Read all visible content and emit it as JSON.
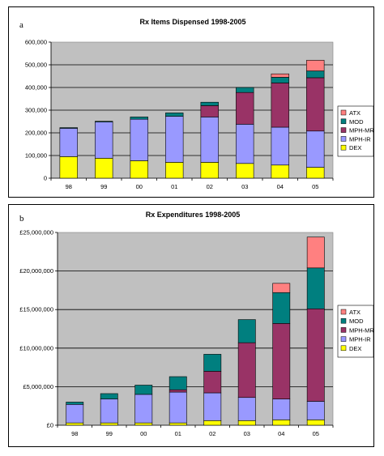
{
  "figure": {
    "panels": [
      {
        "letter": "a"
      },
      {
        "letter": "b"
      }
    ]
  },
  "chart_data": [
    {
      "type": "bar",
      "stacked": true,
      "title": "Rx Items Dispensed 1998-2005",
      "xlabel": "",
      "ylabel": "",
      "categories": [
        "98",
        "99",
        "00",
        "01",
        "02",
        "03",
        "04",
        "05"
      ],
      "ylim": [
        0,
        600000
      ],
      "yticks": [
        0,
        100000,
        200000,
        300000,
        400000,
        500000,
        600000
      ],
      "ytick_labels": [
        "0",
        "100,000",
        "200,000",
        "300,000",
        "400,000",
        "500,000",
        "600,000"
      ],
      "gridlines": [
        100000,
        200000,
        300000,
        400000,
        500000
      ],
      "grid": true,
      "legend_position": "right",
      "plot_background": "#c0c0c0",
      "series": [
        {
          "name": "DEX",
          "color": "#ffff00",
          "values": [
            95000,
            88000,
            77000,
            70000,
            70000,
            65000,
            58000,
            48000
          ]
        },
        {
          "name": "MPH-IR",
          "color": "#9999ff",
          "values": [
            125000,
            160000,
            183000,
            203000,
            200000,
            173000,
            167000,
            160000
          ]
        },
        {
          "name": "MPH-MR",
          "color": "#993366",
          "values": [
            0,
            0,
            0,
            0,
            50000,
            140000,
            195000,
            235000
          ]
        },
        {
          "name": "MOD",
          "color": "#007f7f",
          "values": [
            3000,
            3000,
            10000,
            15000,
            15000,
            22000,
            25000,
            30000
          ]
        },
        {
          "name": "ATX",
          "color": "#ff8080",
          "values": [
            0,
            0,
            0,
            0,
            0,
            0,
            15000,
            47000
          ]
        }
      ]
    },
    {
      "type": "bar",
      "stacked": true,
      "title": "Rx Expenditures 1998-2005",
      "xlabel": "",
      "ylabel": "",
      "categories": [
        "98",
        "99",
        "00",
        "01",
        "02",
        "03",
        "04",
        "05"
      ],
      "ylim": [
        0,
        25000000
      ],
      "yticks": [
        0,
        5000000,
        10000000,
        15000000,
        20000000,
        25000000
      ],
      "ytick_labels": [
        "£0",
        "£5,000,000",
        "£10,000,000",
        "£15,000,000",
        "£20,000,000",
        "£25,000,000"
      ],
      "gridlines": [
        5000000,
        10000000,
        15000000,
        20000000
      ],
      "grid": true,
      "legend_position": "right",
      "plot_background": "#c0c0c0",
      "series": [
        {
          "name": "DEX",
          "color": "#ffff00",
          "values": [
            300000,
            300000,
            300000,
            300000,
            600000,
            600000,
            700000,
            700000
          ]
        },
        {
          "name": "MPH-IR",
          "color": "#9999ff",
          "values": [
            2400000,
            3100000,
            3700000,
            4000000,
            3600000,
            3000000,
            2700000,
            2400000
          ]
        },
        {
          "name": "MPH-MR",
          "color": "#993366",
          "values": [
            0,
            0,
            0,
            300000,
            2800000,
            7100000,
            9800000,
            12000000
          ]
        },
        {
          "name": "MOD",
          "color": "#007f7f",
          "values": [
            300000,
            700000,
            1200000,
            1700000,
            2200000,
            3000000,
            4000000,
            5300000
          ]
        },
        {
          "name": "ATX",
          "color": "#ff8080",
          "values": [
            0,
            0,
            0,
            0,
            0,
            0,
            1200000,
            4000000
          ]
        }
      ]
    }
  ]
}
